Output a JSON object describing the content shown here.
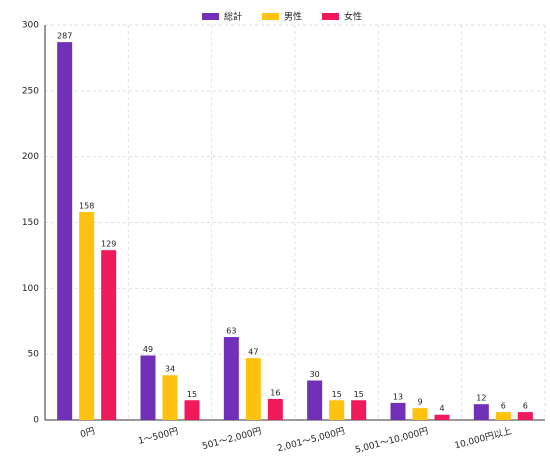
{
  "chart_data": {
    "type": "bar",
    "categories": [
      "0円",
      "1〜500円",
      "501〜2,000円",
      "2,001〜5,000円",
      "5,001〜10,000円",
      "10,000円以上"
    ],
    "series": [
      {
        "name": "総計",
        "color": "#7030b8",
        "values": [
          287,
          49,
          63,
          30,
          13,
          12
        ]
      },
      {
        "name": "男性",
        "color": "#ffc20e",
        "values": [
          158,
          34,
          47,
          15,
          9,
          6
        ]
      },
      {
        "name": "女性",
        "color": "#f0195a",
        "values": [
          129,
          15,
          16,
          15,
          4,
          6
        ]
      }
    ],
    "ylim": [
      0,
      300
    ],
    "yticks": [
      0,
      50,
      100,
      150,
      200,
      250,
      300
    ],
    "grid": true,
    "legend": "top"
  }
}
